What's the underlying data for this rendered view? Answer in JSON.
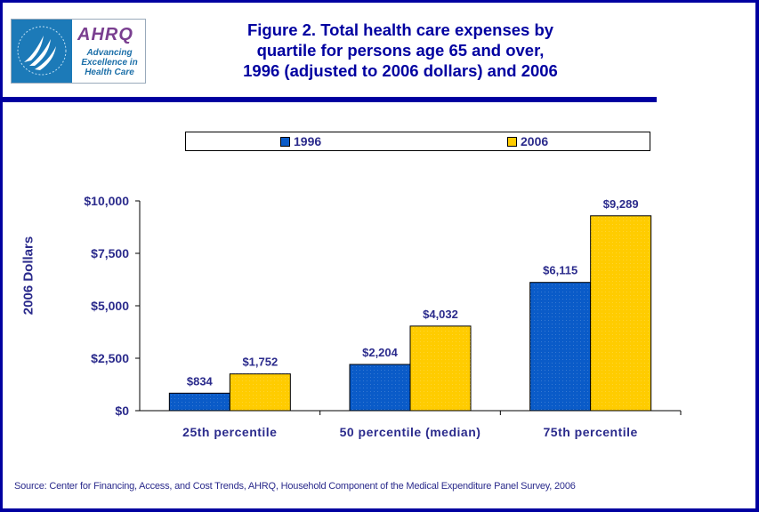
{
  "header": {
    "logo": {
      "icon": "hhs-eagle-icon",
      "brand": "AHRQ",
      "tagline_lines": [
        "Advancing",
        "Excellence in",
        "Health Care"
      ]
    },
    "title_lines": [
      "Figure 2. Total health care expenses by",
      "quartile for persons age 65 and over,",
      "1996 (adjusted to 2006 dollars) and 2006"
    ]
  },
  "colors": {
    "frame": "#0000a0",
    "text": "#2b2b8c",
    "series_1996": "#0a5bc8",
    "series_2006": "#ffcc00"
  },
  "chart_data": {
    "type": "bar",
    "title": "Figure 2. Total health care expenses by quartile for persons age 65 and over, 1996 (adjusted to 2006 dollars) and 2006",
    "xlabel": "",
    "ylabel": "2006 Dollars",
    "ylim": [
      0,
      10000
    ],
    "yticks": [
      0,
      2500,
      5000,
      7500,
      10000
    ],
    "ytick_labels": [
      "$0",
      "$2,500",
      "$5,000",
      "$7,500",
      "$10,000"
    ],
    "grid": false,
    "legend_position": "top",
    "categories": [
      "25th percentile",
      "50 percentile (median)",
      "75th percentile"
    ],
    "series": [
      {
        "name": "1996",
        "color": "#0a5bc8",
        "values": [
          834,
          2204,
          6115
        ],
        "labels": [
          "$834",
          "$2,204",
          "$6,115"
        ]
      },
      {
        "name": "2006",
        "color": "#ffcc00",
        "values": [
          1752,
          4032,
          9289
        ],
        "labels": [
          "$1,752",
          "$4,032",
          "$9,289"
        ]
      }
    ]
  },
  "footer": {
    "source": "Source: Center for Financing, Access, and Cost Trends, AHRQ, Household Component of the Medical Expenditure Panel Survey, 2006"
  }
}
